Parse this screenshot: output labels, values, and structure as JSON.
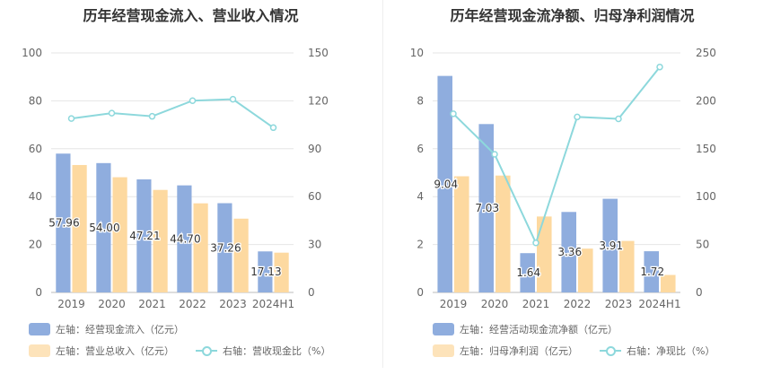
{
  "colors": {
    "bar_a": "#8fadde",
    "bar_b": "#fdd9a0",
    "line": "#8dd8dc",
    "grid": "#e6e6e6",
    "axis_text": "#666666"
  },
  "chart_data": [
    {
      "type": "bar",
      "title": "历年经营现金流入、营业收入情况",
      "categories": [
        "2019",
        "2020",
        "2021",
        "2022",
        "2023",
        "2024H1"
      ],
      "series": [
        {
          "name": "左轴：经营现金流入（亿元）",
          "axis": "left",
          "values": [
            57.96,
            54.0,
            47.21,
            44.7,
            37.26,
            17.13
          ],
          "labels": [
            "57.96",
            "54.00",
            "47.21",
            "44.70",
            "37.26",
            "17.13"
          ]
        },
        {
          "name": "左轴：营业总收入（亿元）",
          "axis": "left",
          "values": [
            53.2,
            48.1,
            42.8,
            37.2,
            30.8,
            16.6
          ]
        },
        {
          "name": "右轴：营收现金比（%）",
          "axis": "right",
          "kind": "line",
          "values": [
            108.9,
            112.3,
            110.3,
            120.1,
            121.0,
            103.2
          ]
        }
      ],
      "ylim_left": [
        0,
        100
      ],
      "yticks_left": [
        "0",
        "20",
        "40",
        "60",
        "80",
        "100"
      ],
      "ylim_right": [
        0,
        150
      ],
      "yticks_right": [
        "0",
        "30",
        "60",
        "90",
        "120",
        "150"
      ],
      "grid": true,
      "legend": "bottom"
    },
    {
      "type": "bar",
      "title": "历年经营现金流净额、归母净利润情况",
      "categories": [
        "2019",
        "2020",
        "2021",
        "2022",
        "2023",
        "2024H1"
      ],
      "series": [
        {
          "name": "左轴：经营活动现金流净额（亿元）",
          "axis": "left",
          "values": [
            9.04,
            7.03,
            1.64,
            3.36,
            3.91,
            1.72
          ],
          "labels": [
            "9.04",
            "7.03",
            "1.64",
            "3.36",
            "3.91",
            "1.72"
          ]
        },
        {
          "name": "左轴：归母净利润（亿元）",
          "axis": "left",
          "values": [
            4.85,
            4.88,
            3.17,
            1.83,
            2.15,
            0.73
          ]
        },
        {
          "name": "右轴：净现比（%）",
          "axis": "right",
          "kind": "line",
          "values": [
            186.5,
            144.2,
            51.7,
            183.2,
            181.2,
            235.3
          ]
        }
      ],
      "ylim_left": [
        0,
        10
      ],
      "yticks_left": [
        "0",
        "2",
        "4",
        "6",
        "8",
        "10"
      ],
      "ylim_right": [
        0,
        250
      ],
      "yticks_right": [
        "0",
        "50",
        "100",
        "150",
        "200",
        "250"
      ],
      "grid": true,
      "legend": "bottom"
    }
  ]
}
